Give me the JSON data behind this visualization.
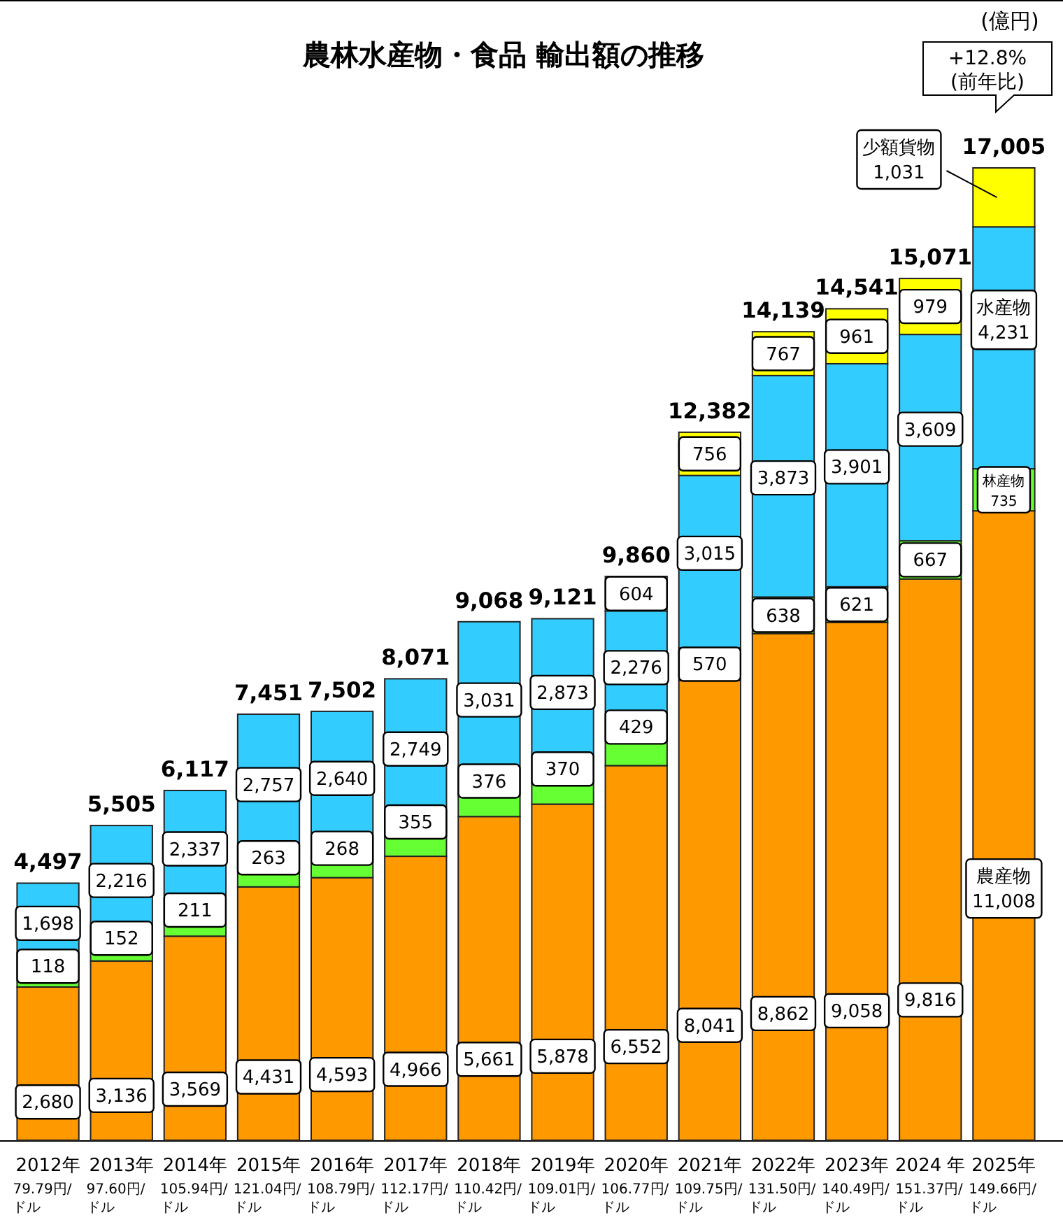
{
  "chart_data": {
    "type": "bar",
    "title": "農林水産物・食品 輸出額の推移",
    "stacked": true,
    "categories": [
      "2012年\n79.79円/ドル",
      "2013年\n97.60円/ドル",
      "2014年\n105.94円/ドル",
      "2015年\n121.04円/ドル",
      "2016年\n108.79円/ドル",
      "2017年\n112.17円/ドル",
      "2018年\n110.42円/ドル",
      "2019年\n109.01円/ドル",
      "2020年\n106.77円/ドル",
      "2021年\n109.75円/ドル",
      "2022年\n131.50円/ドル",
      "2023年\n140.49円/ドル",
      "2024 年\n151.37円/ドル",
      "2025年\n149.66円/ドル"
    ],
    "series": [
      {
        "name": "農産物",
        "color": "#ff9900",
        "values": [
          2680,
          3136,
          3569,
          4431,
          4593,
          4966,
          5661,
          5878,
          6552,
          8041,
          8862,
          9058,
          9816,
          11008
        ],
        "value_labels": [
          "2,680",
          "3,136",
          "3,569",
          "4,431",
          "4,593",
          "4,966",
          "5,661",
          "5,878",
          "6,552",
          "8,041",
          "8,862",
          "9,058",
          "9,816",
          "11,008"
        ]
      },
      {
        "name": "林産物",
        "color": "#66ff33",
        "values": [
          118,
          152,
          211,
          263,
          268,
          355,
          376,
          370,
          429,
          570,
          638,
          621,
          667,
          735
        ],
        "value_labels": [
          "118",
          "152",
          "211",
          "263",
          "268",
          "355",
          "376",
          "370",
          "429",
          "570",
          "638",
          "621",
          "667",
          "735"
        ]
      },
      {
        "name": "水産物",
        "color": "#33ccff",
        "values": [
          1698,
          2216,
          2337,
          2757,
          2640,
          2749,
          3031,
          2873,
          2276,
          3015,
          3873,
          3901,
          3609,
          4231
        ],
        "value_labels": [
          "1,698",
          "2,216",
          "2,337",
          "2,757",
          "2,640",
          "2,749",
          "3,031",
          "2,873",
          "2,276",
          "3,015",
          "3,873",
          "3,901",
          "3,609",
          "4,231"
        ]
      },
      {
        "name": "少額貨物",
        "color": "#ffff00",
        "values": [
          null,
          null,
          null,
          null,
          null,
          null,
          null,
          null,
          604,
          756,
          767,
          961,
          979,
          1031
        ],
        "value_labels": [
          null,
          null,
          null,
          null,
          null,
          null,
          null,
          null,
          "604",
          "756",
          "767",
          "961",
          "979",
          "1,031"
        ]
      }
    ],
    "totals": [
      "4,497",
      "5,505",
      "6,117",
      "7,451",
      "7,502",
      "8,071",
      "9,068",
      "9,121",
      "9,860",
      "12,382",
      "14,139",
      "14,541",
      "15,071",
      "17,005"
    ],
    "annotations": [
      "(億円)",
      "+12.8%\n(前年比)"
    ]
  }
}
